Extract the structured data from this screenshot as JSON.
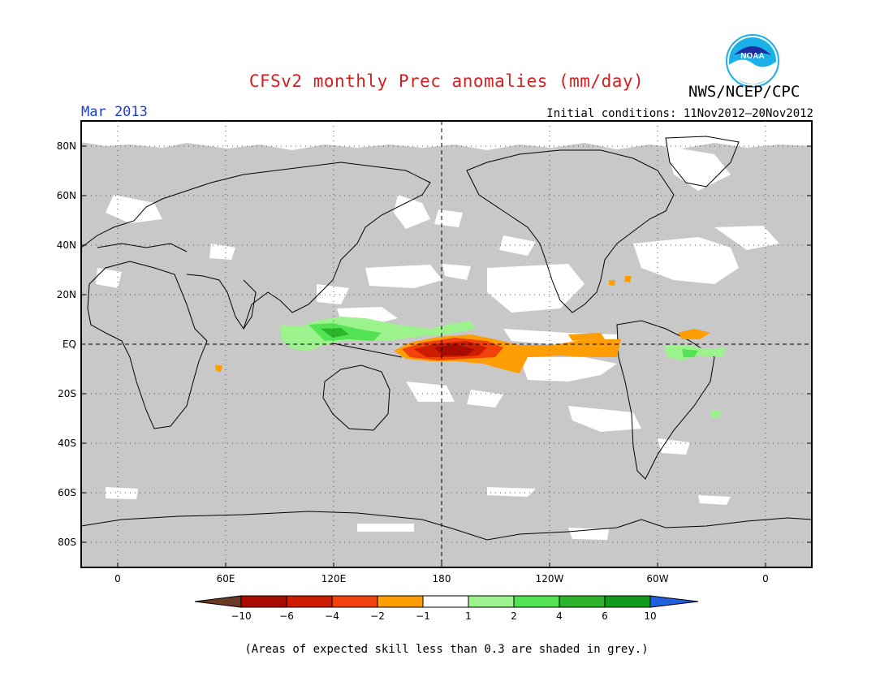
{
  "title": "CFSv2 monthly Prec anomalies (mm/day)",
  "agency": "NWS/NCEP/CPC",
  "logo_text": "NOAA",
  "target_month": "Mar 2013",
  "initial_conditions": "Initial conditions: 11Nov2012–20Nov2012",
  "footer_note": "(Areas of expected skill less than 0.3 are shaded in grey.)",
  "lat_labels": [
    "80N",
    "60N",
    "40N",
    "20N",
    "EQ",
    "20S",
    "40S",
    "60S",
    "80S"
  ],
  "lon_labels": [
    "0",
    "60E",
    "120E",
    "180",
    "120W",
    "60W",
    "0"
  ],
  "colorbar": {
    "labels": [
      "−10",
      "−6",
      "−4",
      "−2",
      "−1",
      "1",
      "2",
      "4",
      "6",
      "10"
    ],
    "colors": [
      "#6b3a26",
      "#a80c00",
      "#cc1d00",
      "#f2420c",
      "#ff9d05",
      "#ffffff",
      "#9cf28c",
      "#52e352",
      "#2db42d",
      "#0f9a1a",
      "#2060e0"
    ]
  },
  "colors": {
    "skill_grey": "#c8c8c8",
    "title_red": "#d42020",
    "month_blue": "#1a3fd8"
  }
}
